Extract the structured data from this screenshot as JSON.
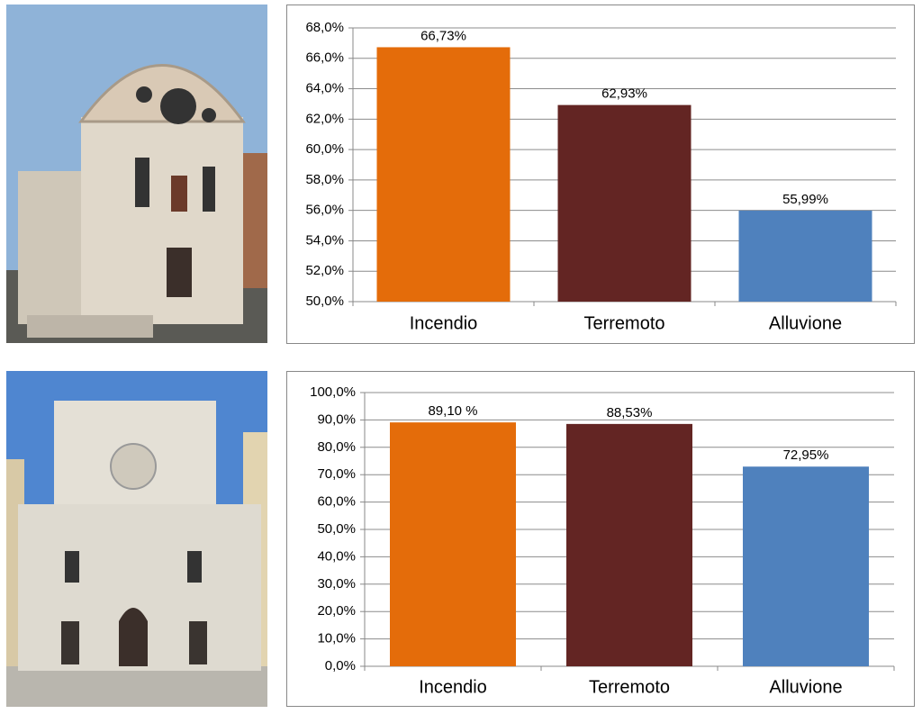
{
  "chart_data": [
    {
      "type": "bar",
      "categories": [
        "Incendio",
        "Terremoto",
        "Alluvione"
      ],
      "values": [
        66.73,
        62.93,
        55.99
      ],
      "value_labels": [
        "66,73%",
        "62,93%",
        "55,99%"
      ],
      "colors": [
        "#e46c0a",
        "#632523",
        "#4f81bd"
      ],
      "ylim": [
        50,
        68
      ],
      "yticks": [
        {
          "value": 50,
          "label": "50,0%"
        },
        {
          "value": 52,
          "label": "52,0%"
        },
        {
          "value": 54,
          "label": "54,0%"
        },
        {
          "value": 56,
          "label": "56,0%"
        },
        {
          "value": 58,
          "label": "58,0%"
        },
        {
          "value": 60,
          "label": "60,0%"
        },
        {
          "value": 62,
          "label": "62,0%"
        },
        {
          "value": 64,
          "label": "64,0%"
        },
        {
          "value": 66,
          "label": "66,0%"
        },
        {
          "value": 68,
          "label": "68,0%"
        }
      ],
      "grid": true
    },
    {
      "type": "bar",
      "categories": [
        "Incendio",
        "Terremoto",
        "Alluvione"
      ],
      "values": [
        89.1,
        88.53,
        72.95
      ],
      "value_labels": [
        "89,10 %",
        "88,53%",
        "72,95%"
      ],
      "colors": [
        "#e46c0a",
        "#632523",
        "#4f81bd"
      ],
      "ylim": [
        0,
        100
      ],
      "yticks": [
        {
          "value": 0,
          "label": "0,0%"
        },
        {
          "value": 10,
          "label": "10,0%"
        },
        {
          "value": 20,
          "label": "20,0%"
        },
        {
          "value": 30,
          "label": "30,0%"
        },
        {
          "value": 40,
          "label": "40,0%"
        },
        {
          "value": 50,
          "label": "50,0%"
        },
        {
          "value": 60,
          "label": "60,0%"
        },
        {
          "value": 70,
          "label": "70,0%"
        },
        {
          "value": 80,
          "label": "80,0%"
        },
        {
          "value": 90,
          "label": "90,0%"
        },
        {
          "value": 100,
          "label": "100,0%"
        }
      ],
      "grid": true
    }
  ]
}
